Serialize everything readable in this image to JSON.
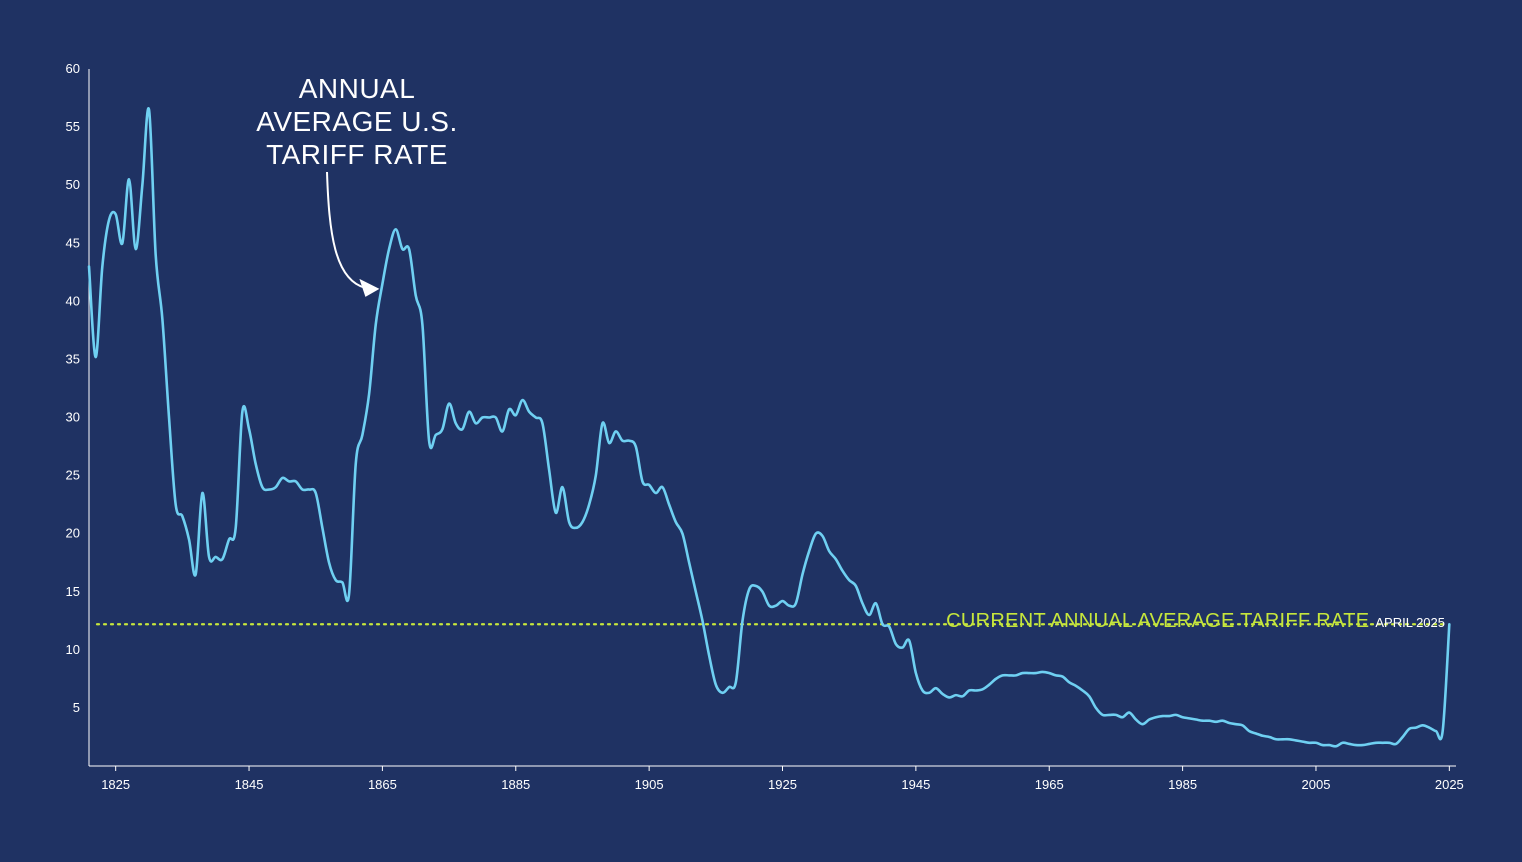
{
  "colors": {
    "background": "#1f3263",
    "series": "#6fd0f2",
    "reference": "#c6e63c",
    "axis": "#ffffff",
    "text": "#ffffff"
  },
  "chart_data": {
    "type": "line",
    "title": "",
    "xlabel": "",
    "ylabel": "",
    "xlim": [
      1821,
      2026
    ],
    "ylim": [
      0,
      60
    ],
    "x_ticks": [
      "1825",
      "1845",
      "1865",
      "1885",
      "1905",
      "1925",
      "1945",
      "1965",
      "1985",
      "2005",
      "2025"
    ],
    "y_ticks": [
      "5",
      "10",
      "15",
      "20",
      "25",
      "30",
      "35",
      "40",
      "45",
      "50",
      "55",
      "60"
    ],
    "grid": false,
    "legend": "none",
    "annotation": {
      "lines": [
        "ANNUAL",
        "AVERAGE U.S.",
        "TARIFF RATE"
      ],
      "arrow_target": [
        1865,
        41.5
      ]
    },
    "reference_line": {
      "value": 12.2,
      "label": "CURRENT ANNUAL AVERAGE TARIFF RATE",
      "sublabel": "APRIL 2025"
    },
    "series": [
      {
        "x": [
          1821,
          1822,
          1823,
          1824,
          1825,
          1826,
          1827,
          1828,
          1829,
          1830,
          1831,
          1832,
          1833,
          1834,
          1835,
          1836,
          1837,
          1838,
          1839,
          1840,
          1841,
          1842,
          1843,
          1844,
          1845,
          1846,
          1847,
          1848,
          1849,
          1850,
          1851,
          1852,
          1853,
          1854,
          1855,
          1856,
          1857,
          1858,
          1859,
          1860,
          1861,
          1862,
          1863,
          1864,
          1865,
          1866,
          1867,
          1868,
          1869,
          1870,
          1871,
          1872,
          1873,
          1874,
          1875,
          1876,
          1877,
          1878,
          1879,
          1880,
          1881,
          1882,
          1883,
          1884,
          1885,
          1886,
          1887,
          1888,
          1889,
          1890,
          1891,
          1892,
          1893,
          1894,
          1895,
          1896,
          1897,
          1898,
          1899,
          1900,
          1901,
          1902,
          1903,
          1904,
          1905,
          1906,
          1907,
          1908,
          1909,
          1910,
          1911,
          1912,
          1913,
          1914,
          1915,
          1916,
          1917,
          1918,
          1919,
          1920,
          1921,
          1922,
          1923,
          1924,
          1925,
          1926,
          1927,
          1928,
          1929,
          1930,
          1931,
          1932,
          1933,
          1934,
          1935,
          1936,
          1937,
          1938,
          1939,
          1940,
          1941,
          1942,
          1943,
          1944,
          1945,
          1946,
          1947,
          1948,
          1949,
          1950,
          1951,
          1952,
          1953,
          1954,
          1955,
          1956,
          1957,
          1958,
          1959,
          1960,
          1961,
          1962,
          1963,
          1964,
          1965,
          1966,
          1967,
          1968,
          1969,
          1970,
          1971,
          1972,
          1973,
          1974,
          1975,
          1976,
          1977,
          1978,
          1979,
          1980,
          1981,
          1982,
          1983,
          1984,
          1985,
          1986,
          1987,
          1988,
          1989,
          1990,
          1991,
          1992,
          1993,
          1994,
          1995,
          1996,
          1997,
          1998,
          1999,
          2000,
          2001,
          2002,
          2003,
          2004,
          2005,
          2006,
          2007,
          2008,
          2009,
          2010,
          2011,
          2012,
          2013,
          2014,
          2015,
          2016,
          2017,
          2018,
          2019,
          2020,
          2021,
          2022,
          2023,
          2024,
          2025
        ],
        "values": [
          43.0,
          35.2,
          43.0,
          47.0,
          47.5,
          45.0,
          50.5,
          44.5,
          50.0,
          56.5,
          44.0,
          38.5,
          30.0,
          22.5,
          21.5,
          19.5,
          16.5,
          23.5,
          18.0,
          18.0,
          17.8,
          19.5,
          20.5,
          30.5,
          29.0,
          26.0,
          24.0,
          23.8,
          24.0,
          24.8,
          24.5,
          24.5,
          23.8,
          23.8,
          23.5,
          20.5,
          17.5,
          16.0,
          15.8,
          14.8,
          26.0,
          28.5,
          32.0,
          38.0,
          41.5,
          44.5,
          46.2,
          44.5,
          44.5,
          40.5,
          38.0,
          28.0,
          28.5,
          29.0,
          31.2,
          29.5,
          29.0,
          30.5,
          29.5,
          30.0,
          30.0,
          30.0,
          28.8,
          30.7,
          30.2,
          31.5,
          30.5,
          30.0,
          29.5,
          25.5,
          21.8,
          24.0,
          21.0,
          20.5,
          21.0,
          22.5,
          25.0,
          29.5,
          27.8,
          28.8,
          28.0,
          28.0,
          27.5,
          24.5,
          24.2,
          23.5,
          24.0,
          22.5,
          21.0,
          20.0,
          17.5,
          15.0,
          12.5,
          9.5,
          7.0,
          6.3,
          6.8,
          7.2,
          12.5,
          15.2,
          15.5,
          15.0,
          13.8,
          13.8,
          14.2,
          13.8,
          14.0,
          16.5,
          18.5,
          20.0,
          19.8,
          18.5,
          17.8,
          16.8,
          16.0,
          15.5,
          14.0,
          13.0,
          14.0,
          12.2,
          12.0,
          10.5,
          10.2,
          10.8,
          8.0,
          6.5,
          6.3,
          6.7,
          6.2,
          5.9,
          6.1,
          6.0,
          6.5,
          6.5,
          6.6,
          7.0,
          7.5,
          7.8,
          7.8,
          7.8,
          8.0,
          8.0,
          8.0,
          8.1,
          8.0,
          7.8,
          7.7,
          7.2,
          6.9,
          6.5,
          6.0,
          5.0,
          4.4,
          4.4,
          4.4,
          4.2,
          4.6,
          4.0,
          3.6,
          4.0,
          4.2,
          4.3,
          4.3,
          4.4,
          4.2,
          4.1,
          4.0,
          3.9,
          3.9,
          3.8,
          3.9,
          3.7,
          3.6,
          3.5,
          3.0,
          2.8,
          2.6,
          2.5,
          2.3,
          2.3,
          2.3,
          2.2,
          2.1,
          2.0,
          2.0,
          1.8,
          1.8,
          1.7,
          2.0,
          1.9,
          1.8,
          1.8,
          1.9,
          2.0,
          2.0,
          2.0,
          1.9,
          2.5,
          3.2,
          3.3,
          3.5,
          3.3,
          3.0,
          3.0,
          12.2
        ]
      }
    ]
  }
}
